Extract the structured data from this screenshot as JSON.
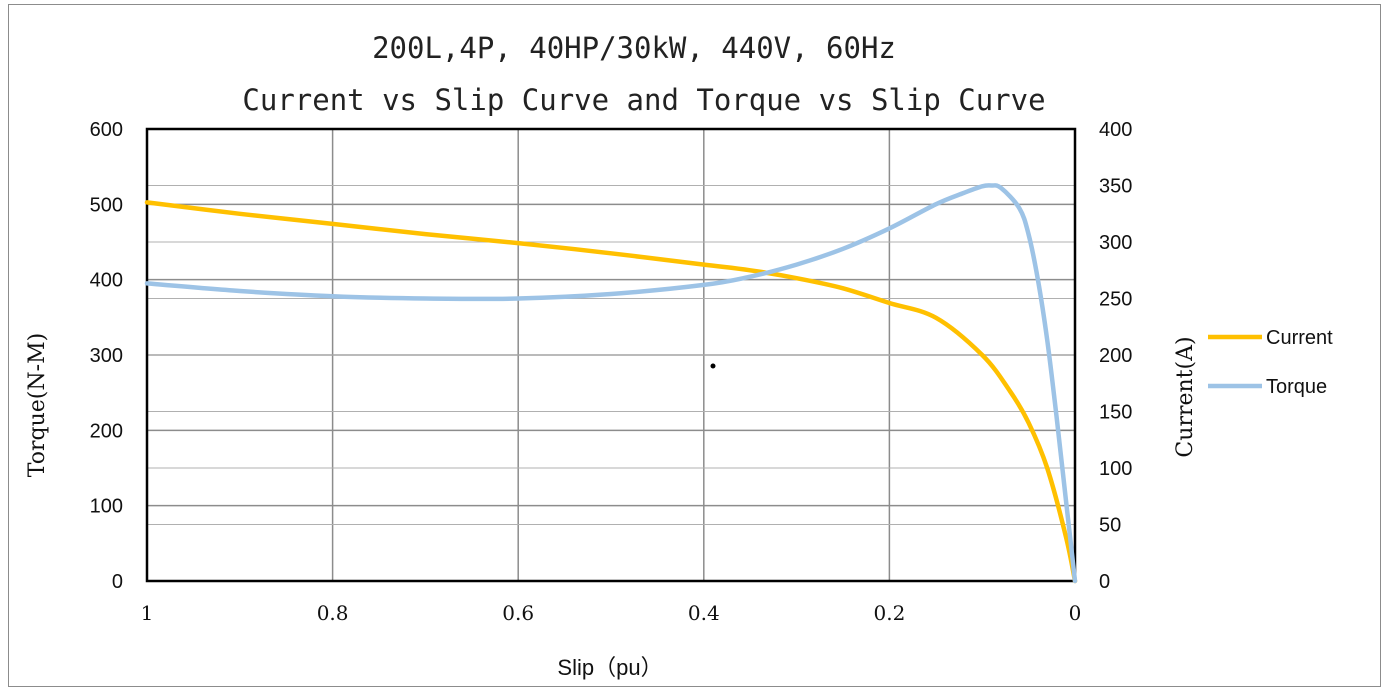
{
  "chart_data": {
    "type": "line",
    "title": "200L,4P, 40HP/30kW, 440V, 60Hz",
    "subtitle": "Current vs Slip Curve and Torque vs Slip Curve",
    "xlabel": "Slip（pu）",
    "ylabel": "Torque(N-M)",
    "y2label": "Current(A)",
    "x_reversed": true,
    "xlim": [
      1,
      0
    ],
    "ylim": [
      0,
      600
    ],
    "y2lim": [
      0,
      400
    ],
    "grid": true,
    "legend_position": "right",
    "x_ticks": [
      "1",
      "0.8",
      "0.6",
      "0.4",
      "0.2",
      "0"
    ],
    "y_ticks": [
      "0",
      "100",
      "200",
      "300",
      "400",
      "500",
      "600"
    ],
    "y2_ticks": [
      "0",
      "50",
      "100",
      "150",
      "200",
      "250",
      "300",
      "350",
      "400"
    ],
    "series": [
      {
        "name": "Current",
        "axis": "right",
        "color": "#FFC000",
        "x": [
          1,
          0.9,
          0.8,
          0.7,
          0.6,
          0.5,
          0.4,
          0.35,
          0.3,
          0.25,
          0.2,
          0.15,
          0.1,
          0.07,
          0.05,
          0.03,
          0.01,
          0
        ],
        "y": [
          335,
          325,
          316,
          307,
          299,
          290,
          280,
          275,
          268,
          259,
          246,
          233,
          200,
          168,
          140,
          100,
          40,
          0
        ]
      },
      {
        "name": "Torque",
        "axis": "left",
        "color": "#9DC3E6",
        "x": [
          1,
          0.9,
          0.8,
          0.7,
          0.6,
          0.5,
          0.4,
          0.35,
          0.3,
          0.25,
          0.2,
          0.15,
          0.12,
          0.1,
          0.09,
          0.08,
          0.06,
          0.05,
          0.04,
          0.03,
          0.02,
          0.01,
          0
        ],
        "y": [
          395,
          385,
          378,
          375,
          375,
          381,
          393,
          404,
          420,
          441,
          468,
          500,
          515,
          524,
          525,
          522,
          495,
          460,
          400,
          320,
          220,
          110,
          0
        ]
      }
    ]
  }
}
